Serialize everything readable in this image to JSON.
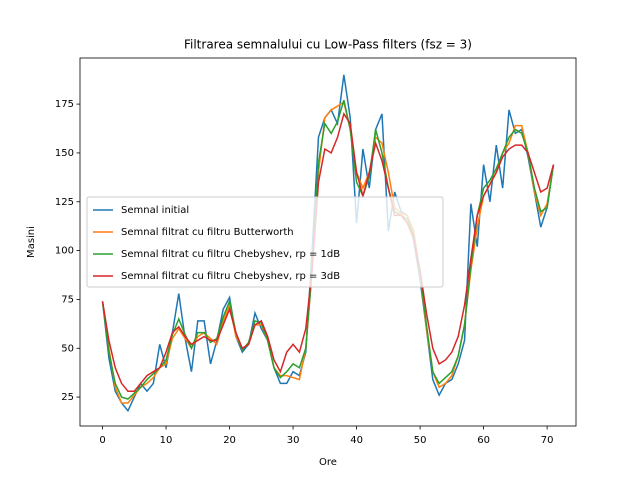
{
  "chart_data": {
    "type": "line",
    "title": "Filtrarea semnalului cu Low-Pass filters (fsz = 3)",
    "x_label": "Ore",
    "y_label": "Masini",
    "x": [
      0,
      1,
      2,
      3,
      4,
      5,
      6,
      7,
      8,
      9,
      10,
      11,
      12,
      13,
      14,
      15,
      16,
      17,
      18,
      19,
      20,
      21,
      22,
      23,
      24,
      25,
      26,
      27,
      28,
      29,
      30,
      31,
      32,
      33,
      34,
      35,
      36,
      37,
      38,
      39,
      40,
      41,
      42,
      43,
      44,
      45,
      46,
      47,
      48,
      49,
      50,
      51,
      52,
      53,
      54,
      55,
      56,
      57,
      58,
      59,
      60,
      61,
      62,
      63,
      64,
      65,
      66,
      67,
      68,
      69,
      70,
      71
    ],
    "series": [
      {
        "name": "Semnal initial",
        "color": "#1f77b4",
        "values": [
          74,
          45,
          28,
          22,
          18,
          25,
          32,
          28,
          32,
          52,
          40,
          58,
          78,
          55,
          38,
          64,
          64,
          42,
          54,
          70,
          76,
          56,
          48,
          52,
          68,
          60,
          54,
          40,
          32,
          32,
          38,
          36,
          48,
          100,
          158,
          168,
          172,
          165,
          190,
          168,
          114,
          152,
          132,
          162,
          170,
          110,
          130,
          120,
          118,
          105,
          85,
          60,
          34,
          26,
          32,
          34,
          42,
          54,
          124,
          102,
          144,
          125,
          154,
          132,
          172,
          160,
          162,
          148,
          130,
          112,
          122,
          144
        ]
      },
      {
        "name": "Semnal filtrat cu filtru Butterworth",
        "color": "#ff7f0e",
        "values": [
          74,
          50,
          30,
          22,
          22,
          26,
          30,
          32,
          35,
          40,
          42,
          55,
          60,
          55,
          50,
          56,
          58,
          55,
          52,
          64,
          72,
          56,
          50,
          52,
          62,
          62,
          54,
          40,
          36,
          36,
          35,
          34,
          50,
          90,
          140,
          168,
          172,
          174,
          176,
          162,
          140,
          132,
          140,
          158,
          155,
          140,
          122,
          119,
          118,
          110,
          88,
          60,
          38,
          30,
          32,
          36,
          46,
          62,
          90,
          112,
          128,
          134,
          140,
          150,
          155,
          164,
          164,
          150,
          130,
          118,
          124,
          144
        ]
      },
      {
        "name": "Semnal filtrat cu filtru Chebyshev, rp = 1dB",
        "color": "#2ca02c",
        "values": [
          74,
          48,
          32,
          25,
          24,
          27,
          30,
          34,
          37,
          40,
          44,
          57,
          65,
          57,
          50,
          58,
          58,
          53,
          55,
          66,
          74,
          58,
          49,
          53,
          64,
          63,
          54,
          40,
          35,
          38,
          42,
          40,
          50,
          90,
          145,
          165,
          160,
          166,
          177,
          162,
          135,
          128,
          138,
          162,
          150,
          132,
          120,
          118,
          116,
          108,
          88,
          62,
          38,
          32,
          35,
          38,
          46,
          62,
          92,
          118,
          132,
          136,
          142,
          150,
          158,
          162,
          160,
          150,
          132,
          120,
          122,
          144
        ]
      },
      {
        "name": "Semnal filtrat cu filtru Chebyshev, rp = 3dB",
        "color": "#d62728",
        "values": [
          74,
          54,
          40,
          32,
          28,
          28,
          32,
          36,
          38,
          40,
          48,
          58,
          61,
          56,
          52,
          54,
          56,
          54,
          54,
          62,
          70,
          58,
          50,
          52,
          62,
          64,
          56,
          44,
          38,
          48,
          52,
          48,
          60,
          90,
          135,
          152,
          150,
          158,
          170,
          165,
          140,
          128,
          140,
          155,
          146,
          132,
          118,
          118,
          114,
          106,
          90,
          68,
          50,
          42,
          44,
          48,
          56,
          72,
          96,
          118,
          128,
          134,
          140,
          148,
          152,
          154,
          154,
          150,
          140,
          130,
          132,
          144
        ]
      }
    ],
    "xlim": [
      -3.55,
      74.55
    ],
    "xticks": [
      0,
      10,
      20,
      30,
      40,
      50,
      60,
      70
    ],
    "ylim": [
      10.2,
      198.6
    ],
    "yticks": [
      25,
      50,
      75,
      100,
      125,
      150,
      175
    ],
    "legend": "center left"
  }
}
